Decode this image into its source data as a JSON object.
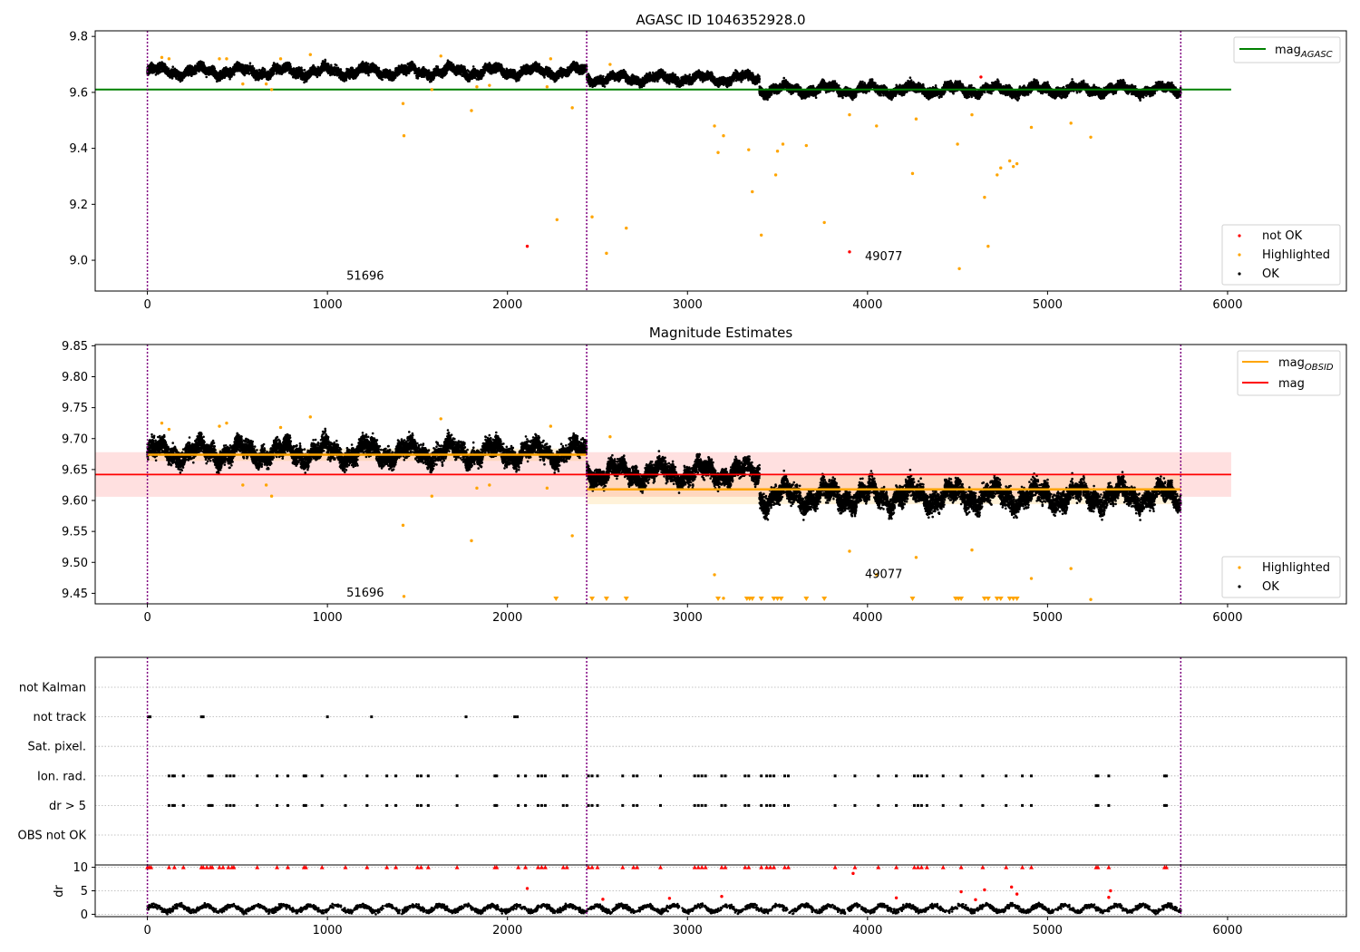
{
  "colors": {
    "ok": "#000000",
    "highlighted": "#ffa500",
    "not_ok": "#ff0000",
    "agasc": "#008000",
    "obsid_line": "#ffa500",
    "mag_line": "#ff0000",
    "obs_divider": "#800080",
    "grid": "#b0b0b0"
  },
  "chart_data": [
    {
      "id": "agasc",
      "type": "scatter",
      "title": "AGASC ID 1046352928.0",
      "xlim": [
        -290,
        6660
      ],
      "ylim": [
        8.89,
        9.82
      ],
      "xticks": [
        0,
        1000,
        2000,
        3000,
        4000,
        5000,
        6000
      ],
      "xtick_labels": [
        "0",
        "1000",
        "2000",
        "3000",
        "4000",
        "5000",
        "6000"
      ],
      "yticks": [
        9.0,
        9.2,
        9.4,
        9.6,
        9.8
      ],
      "ytick_labels": [
        "9.0",
        "9.2",
        "9.4",
        "9.6",
        "9.8"
      ],
      "obs_boundaries": [
        0,
        2440,
        5740
      ],
      "obs_labels": [
        {
          "x": 1210,
          "y": 8.93,
          "text": "51696"
        },
        {
          "x": 4090,
          "y": 9.0,
          "text": "49077"
        }
      ],
      "mag_agasc": {
        "value": 9.61,
        "x": [
          -290,
          6020
        ]
      },
      "ok_band": [
        {
          "x0": 0,
          "x1": 2440,
          "center": 9.675,
          "spread": 0.022
        },
        {
          "x0": 2440,
          "x1": 3400,
          "center": 9.65,
          "spread": 0.02
        },
        {
          "x0": 3400,
          "x1": 5740,
          "center": 9.61,
          "spread": 0.022
        }
      ],
      "highlighted": [
        [
          80,
          9.725
        ],
        [
          120,
          9.72
        ],
        [
          400,
          9.72
        ],
        [
          440,
          9.72
        ],
        [
          530,
          9.63
        ],
        [
          660,
          9.63
        ],
        [
          690,
          9.61
        ],
        [
          740,
          9.72
        ],
        [
          905,
          9.735
        ],
        [
          1420,
          9.56
        ],
        [
          1425,
          9.445
        ],
        [
          1580,
          9.61
        ],
        [
          1630,
          9.73
        ],
        [
          1800,
          9.535
        ],
        [
          1830,
          9.62
        ],
        [
          1900,
          9.625
        ],
        [
          2220,
          9.62
        ],
        [
          2240,
          9.72
        ],
        [
          2275,
          9.145
        ],
        [
          2360,
          9.545
        ],
        [
          2470,
          9.155
        ],
        [
          2550,
          9.025
        ],
        [
          2570,
          9.7
        ],
        [
          2660,
          9.115
        ],
        [
          3150,
          9.48
        ],
        [
          3170,
          9.385
        ],
        [
          3200,
          9.445
        ],
        [
          3340,
          9.395
        ],
        [
          3360,
          9.245
        ],
        [
          3410,
          9.09
        ],
        [
          3490,
          9.305
        ],
        [
          3500,
          9.39
        ],
        [
          3530,
          9.415
        ],
        [
          3660,
          9.41
        ],
        [
          3760,
          9.135
        ],
        [
          3900,
          9.52
        ],
        [
          4050,
          9.48
        ],
        [
          4250,
          9.31
        ],
        [
          4270,
          9.505
        ],
        [
          4500,
          9.415
        ],
        [
          4510,
          8.97
        ],
        [
          4580,
          9.52
        ],
        [
          4650,
          9.225
        ],
        [
          4670,
          9.05
        ],
        [
          4720,
          9.305
        ],
        [
          4740,
          9.33
        ],
        [
          4790,
          9.355
        ],
        [
          4810,
          9.335
        ],
        [
          4830,
          9.345
        ],
        [
          4910,
          9.475
        ],
        [
          5130,
          9.49
        ],
        [
          5240,
          9.44
        ]
      ],
      "not_ok": [
        [
          2110,
          9.05
        ],
        [
          3900,
          9.03
        ],
        [
          4630,
          9.655
        ]
      ],
      "legend_top": [
        {
          "label": "mag",
          "sub": "AGASC",
          "color": "#008000"
        }
      ],
      "legend_bottom": [
        {
          "label": "not OK",
          "color": "#ff0000"
        },
        {
          "label": "Highlighted",
          "color": "#ffa500"
        },
        {
          "label": "OK",
          "color": "#000000"
        }
      ]
    },
    {
      "id": "estimates",
      "type": "scatter",
      "title": "Magnitude Estimates",
      "xlim": [
        -290,
        6660
      ],
      "ylim": [
        9.433,
        9.852
      ],
      "xticks": [
        0,
        1000,
        2000,
        3000,
        4000,
        5000,
        6000
      ],
      "xtick_labels": [
        "0",
        "1000",
        "2000",
        "3000",
        "4000",
        "5000",
        "6000"
      ],
      "yticks": [
        9.45,
        9.5,
        9.55,
        9.6,
        9.65,
        9.7,
        9.75,
        9.8,
        9.85
      ],
      "ytick_labels": [
        "9.45",
        "9.50",
        "9.55",
        "9.60",
        "9.65",
        "9.70",
        "9.75",
        "9.80",
        "9.85"
      ],
      "obs_boundaries": [
        0,
        2440,
        5740
      ],
      "obs_labels": [
        {
          "x": 1210,
          "y": 9.445,
          "text": "51696"
        },
        {
          "x": 4090,
          "y": 9.475,
          "text": "49077"
        }
      ],
      "mag": {
        "value": 9.642,
        "band": [
          9.606,
          9.678
        ],
        "x": [
          -290,
          6020
        ]
      },
      "mag_obsid": [
        {
          "x0": 0,
          "x1": 2440,
          "value": 9.674,
          "band": [
            9.664,
            9.684
          ]
        },
        {
          "x0": 2440,
          "x1": 5740,
          "value": 9.618,
          "band": [
            9.594,
            9.64
          ]
        }
      ],
      "ok_band": [
        {
          "x0": 0,
          "x1": 2440,
          "center": 9.678,
          "spread": 0.02
        },
        {
          "x0": 2440,
          "x1": 3400,
          "center": 9.645,
          "spread": 0.02
        },
        {
          "x0": 3400,
          "x1": 5740,
          "center": 9.607,
          "spread": 0.022
        }
      ],
      "highlighted": [
        [
          80,
          9.725
        ],
        [
          120,
          9.715
        ],
        [
          400,
          9.72
        ],
        [
          440,
          9.725
        ],
        [
          530,
          9.625
        ],
        [
          660,
          9.625
        ],
        [
          690,
          9.607
        ],
        [
          740,
          9.718
        ],
        [
          905,
          9.735
        ],
        [
          1420,
          9.56
        ],
        [
          1425,
          9.445
        ],
        [
          1580,
          9.607
        ],
        [
          1630,
          9.732
        ],
        [
          1800,
          9.535
        ],
        [
          1830,
          9.62
        ],
        [
          1900,
          9.625
        ],
        [
          2220,
          9.62
        ],
        [
          2240,
          9.72
        ],
        [
          2360,
          9.543
        ],
        [
          2570,
          9.703
        ],
        [
          3150,
          9.48
        ],
        [
          3200,
          9.442
        ],
        [
          3900,
          9.518
        ],
        [
          4050,
          9.48
        ],
        [
          4270,
          9.508
        ],
        [
          4580,
          9.52
        ],
        [
          4910,
          9.474
        ],
        [
          5130,
          9.49
        ],
        [
          5240,
          9.44
        ]
      ],
      "off_scale_markers": [
        2270,
        2470,
        2550,
        2660,
        3170,
        3330,
        3345,
        3360,
        3410,
        3480,
        3500,
        3520,
        3660,
        3760,
        4250,
        4490,
        4505,
        4520,
        4650,
        4670,
        4720,
        4740,
        4790,
        4810,
        4830
      ],
      "legend_top": [
        {
          "label": "mag",
          "sub": "OBSID",
          "color": "#ffa500"
        },
        {
          "label": "mag",
          "sub": "",
          "color": "#ff0000"
        }
      ],
      "legend_bottom": [
        {
          "label": "Highlighted",
          "color": "#ffa500"
        },
        {
          "label": "OK",
          "color": "#000000"
        }
      ]
    },
    {
      "id": "flags",
      "type": "scatter",
      "xlim": [
        -290,
        6660
      ],
      "obs_boundaries": [
        0,
        2440,
        5740
      ],
      "rows": [
        "not Kalman",
        "not track",
        "Sat. pixel.",
        "Ion. rad.",
        "dr > 5",
        "OBS not OK"
      ],
      "events": {
        "not Kalman": [],
        "not track": [
          5,
          15,
          300,
          310,
          1000,
          1245,
          1770,
          2040,
          2055
        ],
        "Sat. pixel.": [],
        "Ion. rad.": [
          120,
          140,
          150,
          200,
          340,
          350,
          360,
          440,
          460,
          480,
          610,
          720,
          780,
          870,
          880,
          970,
          1100,
          1220,
          1330,
          1380,
          1500,
          1520,
          1560,
          1720,
          1930,
          1940,
          2060,
          2100,
          2170,
          2190,
          2210,
          2310,
          2330,
          2450,
          2470,
          2500,
          2640,
          2700,
          2720,
          2850,
          3040,
          3060,
          3080,
          3100,
          3190,
          3210,
          3320,
          3340,
          3410,
          3440,
          3460,
          3480,
          3540,
          3560,
          3820,
          3930,
          4060,
          4160,
          4260,
          4280,
          4300,
          4330,
          4420,
          4520,
          4640,
          4770,
          4860,
          4910,
          5270,
          5280,
          5340,
          5650,
          5660
        ],
        "dr > 5": [
          120,
          140,
          150,
          200,
          340,
          350,
          360,
          440,
          460,
          480,
          610,
          720,
          780,
          870,
          880,
          970,
          1100,
          1220,
          1330,
          1380,
          1500,
          1520,
          1560,
          1720,
          1930,
          1940,
          2060,
          2100,
          2170,
          2190,
          2210,
          2310,
          2330,
          2450,
          2470,
          2500,
          2640,
          2700,
          2720,
          2850,
          3040,
          3060,
          3080,
          3100,
          3190,
          3210,
          3320,
          3340,
          3410,
          3440,
          3460,
          3480,
          3540,
          3560,
          3820,
          3930,
          4060,
          4160,
          4260,
          4280,
          4300,
          4330,
          4420,
          4520,
          4640,
          4770,
          4860,
          4910,
          5270,
          5280,
          5340,
          5650,
          5660
        ],
        "OBS not OK": []
      }
    },
    {
      "id": "dr",
      "type": "scatter",
      "ylabel": "dr",
      "xlim": [
        -290,
        6660
      ],
      "ylim": [
        -0.5,
        10.5
      ],
      "xticks": [
        0,
        1000,
        2000,
        3000,
        4000,
        5000,
        6000
      ],
      "xtick_labels": [
        "0",
        "1000",
        "2000",
        "3000",
        "4000",
        "5000",
        "6000"
      ],
      "yticks": [
        0,
        5,
        10
      ],
      "ytick_labels": [
        "0",
        "5",
        "10"
      ],
      "obs_boundaries": [
        0,
        2440,
        5740
      ],
      "dr_max_shown": 10,
      "dr_baseline": [
        0.3,
        2.2
      ],
      "dr_outliers": [
        [
          2110,
          5.5
        ],
        [
          2530,
          3.2
        ],
        [
          2900,
          3.4
        ],
        [
          3190,
          3.8
        ],
        [
          3920,
          8.7
        ],
        [
          4160,
          3.5
        ],
        [
          4520,
          4.8
        ],
        [
          4600,
          3.1
        ],
        [
          4650,
          5.2
        ],
        [
          4800,
          5.8
        ],
        [
          4830,
          4.3
        ],
        [
          5350,
          5.0
        ],
        [
          5340,
          3.6
        ]
      ],
      "dr_clipped": [
        0,
        10,
        20,
        120,
        150,
        200,
        300,
        310,
        330,
        350,
        360,
        400,
        420,
        450,
        470,
        480,
        610,
        720,
        780,
        870,
        880,
        970,
        1100,
        1220,
        1330,
        1380,
        1500,
        1520,
        1560,
        1720,
        1930,
        1940,
        2060,
        2100,
        2170,
        2190,
        2210,
        2310,
        2330,
        2450,
        2470,
        2500,
        2640,
        2700,
        2720,
        2850,
        3040,
        3060,
        3080,
        3100,
        3190,
        3210,
        3320,
        3340,
        3410,
        3440,
        3460,
        3480,
        3540,
        3560,
        3820,
        3930,
        4060,
        4160,
        4260,
        4280,
        4300,
        4330,
        4420,
        4520,
        4640,
        4770,
        4860,
        4910,
        5270,
        5280,
        5340,
        5650,
        5660
      ]
    }
  ]
}
